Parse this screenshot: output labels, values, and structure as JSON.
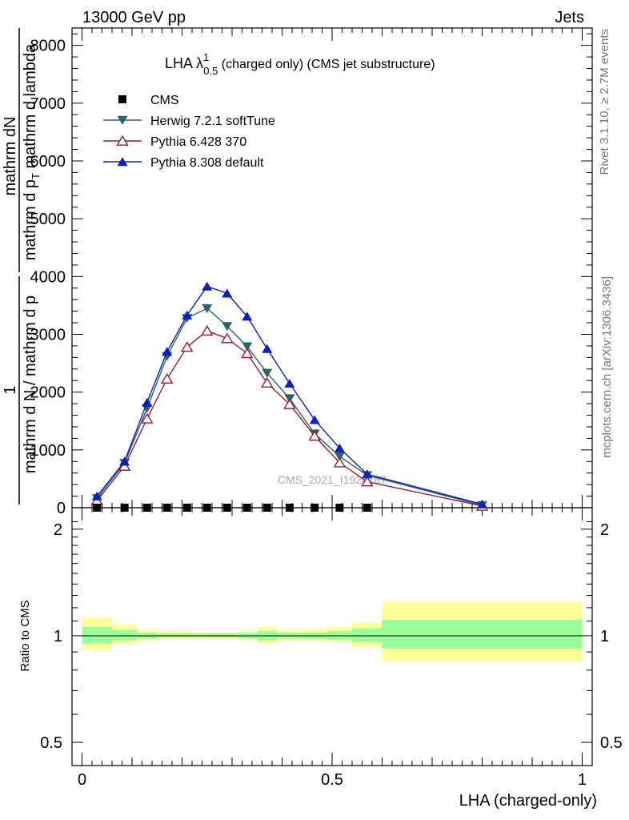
{
  "header": {
    "left": "13000 GeV pp",
    "right": "Jets"
  },
  "side_labels": {
    "rivet": "Rivet 3.1.10, ≥ 2.7M events",
    "mcplots": "mcplots.cern.ch [arXiv:1306.3436]"
  },
  "chart_data": {
    "type": "line",
    "title_main": "LHA λ",
    "title_sup": "1",
    "title_sub": "0.5",
    "title_rest": " (charged only) (CMS jet substructure)",
    "watermark": "CMS_2021_I1920187",
    "ylabel_main": {
      "numerator_left": "1",
      "denominator_left": "mathrm d N / mathrm d p",
      "numerator_right": "mathrm d²N",
      "denominator_right": "mathrm d p",
      "denominator_right_sub": "T",
      "denominator_right_end": " mathrm d lambda",
      "frac_left_numerator": "1",
      "frac_right_numerator": "mathrm dN",
      "visible_num": "mathrm d²N",
      "visible_den": "mathrm d N / mathrm d p mathrm d p",
      "visible_den_sub": "T",
      "visible_den_end": "mathrm d lambda"
    },
    "xlabel": "LHA (charged-only)",
    "ylabel_ratio": "Ratio to CMS",
    "main_yticks": [
      0,
      1000,
      2000,
      3000,
      4000,
      5000,
      6000,
      7000,
      8000
    ],
    "main_ylim": [
      0,
      8300
    ],
    "xlim": [
      -0.02,
      1.02
    ],
    "xticks": [
      0,
      0.5,
      1
    ],
    "ratio_ylim": [
      0.43,
      2.3
    ],
    "ratio_yticks": [
      0.5,
      1,
      2
    ],
    "legend": [
      {
        "name": "CMS",
        "color": "#000000",
        "marker": "square"
      },
      {
        "name": "Herwig 7.2.1 softTune",
        "color": "#2a6565",
        "marker": "triangle-down"
      },
      {
        "name": "Pythia 6.428 370",
        "color": "#9b1b30",
        "marker": "triangle-up-open"
      },
      {
        "name": "Pythia 8.308 default",
        "color": "#0a1fc8",
        "marker": "triangle-up"
      }
    ],
    "series": [
      {
        "name": "CMS",
        "x": [
          0.03,
          0.085,
          0.13,
          0.17,
          0.21,
          0.25,
          0.29,
          0.33,
          0.37,
          0.415,
          0.465,
          0.515,
          0.57
        ],
        "y": [
          0,
          0,
          0,
          0,
          0,
          0,
          0,
          0,
          0,
          0,
          0,
          0,
          0
        ]
      },
      {
        "name": "Herwig 7.2.1 softTune",
        "x": [
          0.03,
          0.085,
          0.13,
          0.17,
          0.21,
          0.25,
          0.29,
          0.33,
          0.37,
          0.415,
          0.465,
          0.515,
          0.57,
          0.8
        ],
        "y": [
          160,
          770,
          1720,
          2620,
          3280,
          3450,
          3140,
          2790,
          2330,
          1890,
          1280,
          890,
          560,
          40
        ]
      },
      {
        "name": "Pythia 6.428 370",
        "x": [
          0.03,
          0.085,
          0.13,
          0.17,
          0.21,
          0.25,
          0.29,
          0.33,
          0.37,
          0.415,
          0.465,
          0.515,
          0.57,
          0.8
        ],
        "y": [
          120,
          720,
          1540,
          2230,
          2780,
          3060,
          2930,
          2670,
          2160,
          1790,
          1240,
          780,
          450,
          30
        ]
      },
      {
        "name": "Pythia 8.308 default",
        "x": [
          0.03,
          0.085,
          0.13,
          0.17,
          0.21,
          0.25,
          0.29,
          0.33,
          0.37,
          0.415,
          0.465,
          0.515,
          0.57,
          0.8
        ],
        "y": [
          200,
          800,
          1820,
          2700,
          3330,
          3830,
          3710,
          3310,
          2750,
          2150,
          1520,
          1030,
          580,
          60
        ]
      }
    ],
    "ratio_bands": [
      {
        "x0": 0.0,
        "x1": 0.06,
        "inner": [
          0.95,
          1.06
        ],
        "outer": [
          0.91,
          1.13
        ]
      },
      {
        "x0": 0.06,
        "x1": 0.11,
        "inner": [
          0.97,
          1.04
        ],
        "outer": [
          0.95,
          1.08
        ]
      },
      {
        "x0": 0.11,
        "x1": 0.15,
        "inner": [
          0.985,
          1.02
        ],
        "outer": [
          0.97,
          1.04
        ]
      },
      {
        "x0": 0.15,
        "x1": 0.19,
        "inner": [
          0.99,
          1.015
        ],
        "outer": [
          0.98,
          1.03
        ]
      },
      {
        "x0": 0.19,
        "x1": 0.23,
        "inner": [
          0.99,
          1.015
        ],
        "outer": [
          0.98,
          1.03
        ]
      },
      {
        "x0": 0.23,
        "x1": 0.27,
        "inner": [
          0.99,
          1.015
        ],
        "outer": [
          0.98,
          1.025
        ]
      },
      {
        "x0": 0.27,
        "x1": 0.31,
        "inner": [
          0.99,
          1.015
        ],
        "outer": [
          0.98,
          1.025
        ]
      },
      {
        "x0": 0.31,
        "x1": 0.35,
        "inner": [
          0.985,
          1.02
        ],
        "outer": [
          0.975,
          1.03
        ]
      },
      {
        "x0": 0.35,
        "x1": 0.39,
        "inner": [
          0.97,
          1.03
        ],
        "outer": [
          0.95,
          1.06
        ]
      },
      {
        "x0": 0.39,
        "x1": 0.44,
        "inner": [
          0.985,
          1.02
        ],
        "outer": [
          0.97,
          1.04
        ]
      },
      {
        "x0": 0.44,
        "x1": 0.49,
        "inner": [
          0.98,
          1.02
        ],
        "outer": [
          0.97,
          1.045
        ]
      },
      {
        "x0": 0.49,
        "x1": 0.54,
        "inner": [
          0.975,
          1.03
        ],
        "outer": [
          0.96,
          1.06
        ]
      },
      {
        "x0": 0.54,
        "x1": 0.6,
        "inner": [
          0.96,
          1.05
        ],
        "outer": [
          0.93,
          1.09
        ]
      },
      {
        "x0": 0.6,
        "x1": 1.0,
        "inner": [
          0.92,
          1.11
        ],
        "outer": [
          0.85,
          1.25
        ]
      }
    ],
    "colors": {
      "band_inner": "#99ff99",
      "band_outer": "#ffff99"
    }
  }
}
